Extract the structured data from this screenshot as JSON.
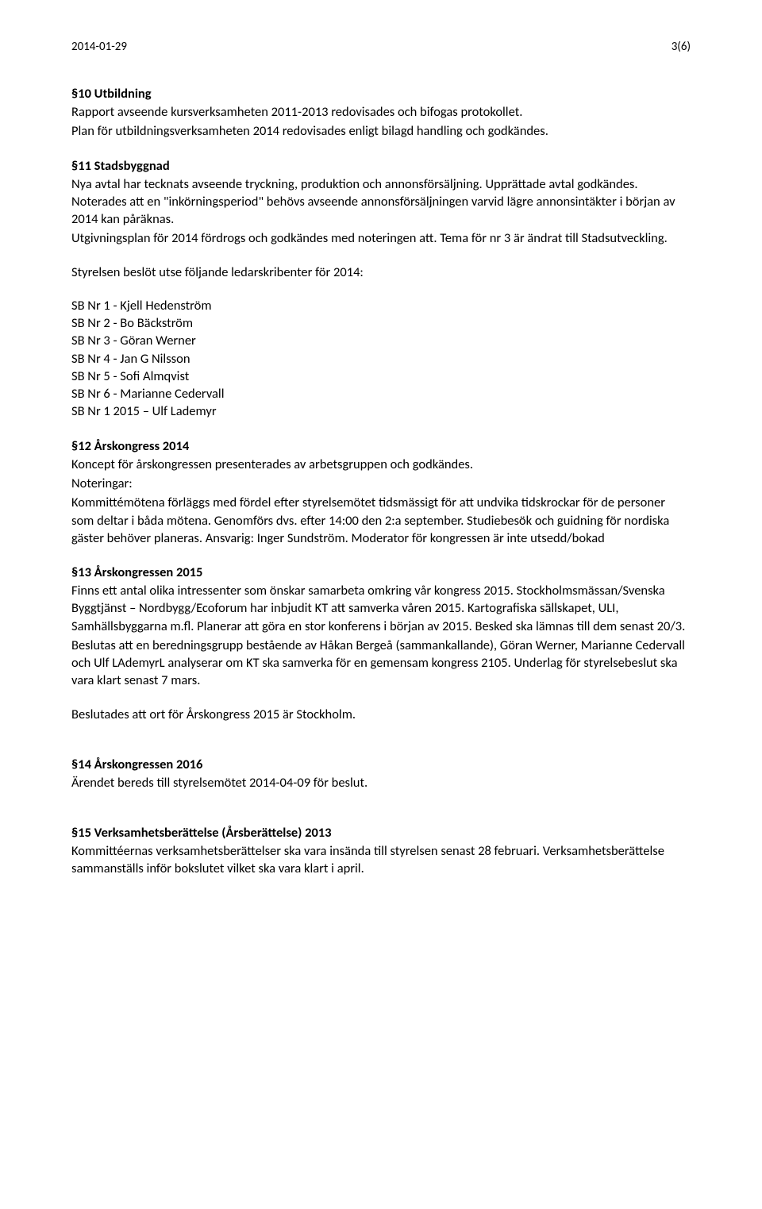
{
  "header": {
    "date": "2014-01-29",
    "page": "3(6)"
  },
  "sections": {
    "s10": {
      "heading": "§10 Utbildning",
      "p1": "Rapport avseende kursverksamheten 2011-2013 redovisades och bifogas protokollet.",
      "p2": "Plan för utbildningsverksamheten 2014 redovisades enligt bilagd handling och godkändes."
    },
    "s11": {
      "heading": "§11 Stadsbyggnad",
      "p1": "Nya avtal har tecknats avseende tryckning, produktion och annonsförsäljning. Upprättade avtal godkändes. Noterades att en \"inkörningsperiod\" behövs avseende annonsförsäljningen varvid lägre annonsintäkter i början av 2014 kan påräknas.",
      "p2": "Utgivningsplan för 2014 fördrogs och godkändes med noteringen att. Tema för nr 3 är ändrat till Stadsutveckling.",
      "p3": "Styrelsen beslöt utse följande ledarskribenter för 2014:",
      "list": [
        "SB Nr 1 - Kjell Hedenström",
        "SB Nr 2 - Bo Bäckström",
        "SB Nr 3 - Göran Werner",
        "SB Nr 4 - Jan G Nilsson",
        "SB Nr 5 - Sofi Almqvist",
        "SB Nr 6 - Marianne Cedervall",
        "SB Nr 1 2015 – Ulf Lademyr"
      ]
    },
    "s12": {
      "heading": "§12 Årskongress 2014",
      "p1": "Koncept för årskongressen presenterades av arbetsgruppen och godkändes.",
      "p2": "Noteringar:",
      "p3": "Kommittémötena förläggs med fördel efter styrelsemötet tidsmässigt för att undvika tidskrockar för de personer som deltar i båda mötena. Genomförs dvs. efter 14:00 den 2:a september. Studiebesök och guidning för nordiska gäster behöver planeras. Ansvarig: Inger Sundström. Moderator för kongressen är inte utsedd/bokad"
    },
    "s13": {
      "heading": "§13 Årskongressen 2015",
      "p1": "Finns ett antal olika intressenter som önskar samarbeta omkring vår kongress 2015. Stockholmsmässan/Svenska Byggtjänst – Nordbygg/Ecoforum har inbjudit KT att samverka våren 2015. Kartografiska sällskapet, ULI, Samhällsbyggarna m.fl. Planerar att göra en stor konferens i början av 2015. Besked ska lämnas till dem senast 20/3.",
      "p2": "Beslutas att en beredningsgrupp bestående av Håkan Bergeå (sammankallande), Göran Werner, Marianne Cedervall och Ulf LAdemyrL analyserar om KT ska samverka för en gemensam kongress 2105. Underlag för styrelsebeslut ska vara klart senast 7 mars.",
      "p3": "Beslutades att ort för Årskongress 2015 är Stockholm."
    },
    "s14": {
      "heading": "§14 Årskongressen 2016",
      "p1": "Ärendet bereds till styrelsemötet 2014-04-09 för beslut."
    },
    "s15": {
      "heading": "§15 Verksamhetsberättelse (Årsberättelse) 2013",
      "p1": "Kommittéernas verksamhetsberättelser ska vara insända till styrelsen senast 28 februari. Verksamhetsberättelse sammanställs inför bokslutet vilket ska vara klart i april."
    }
  }
}
